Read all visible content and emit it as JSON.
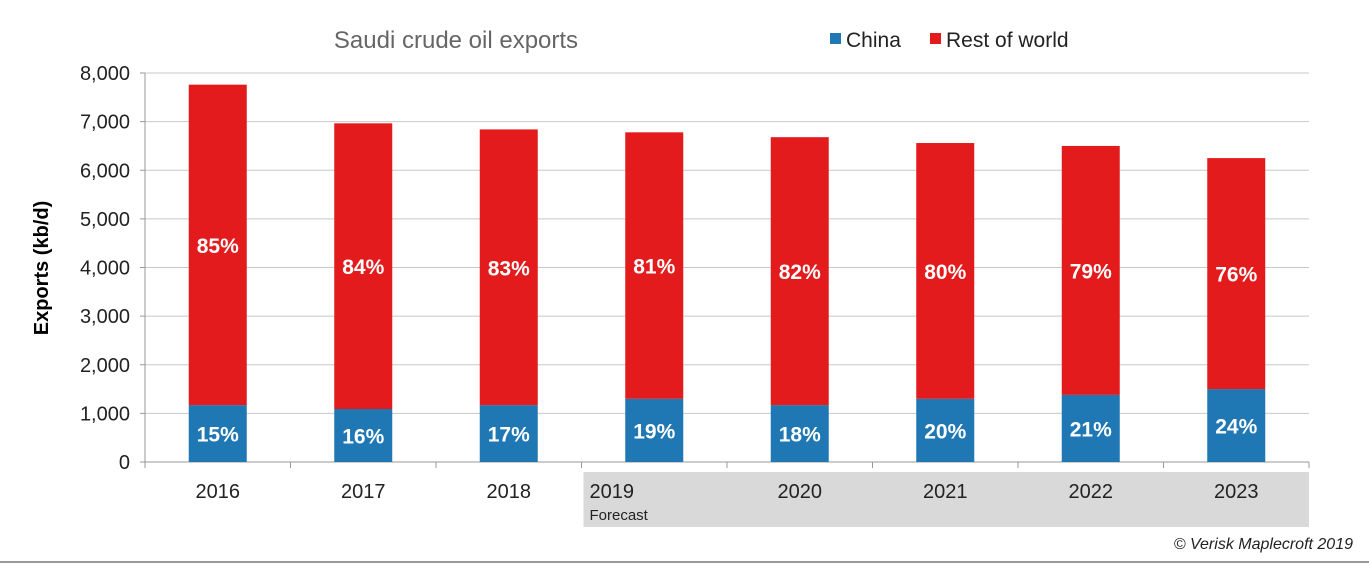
{
  "chart_data": {
    "type": "bar",
    "stacked": true,
    "title": "Saudi crude oil  exports",
    "ylabel": "Exports (kb/d)",
    "xlabel": "",
    "ylim": [
      0,
      8000
    ],
    "yticks": [
      "0",
      "1,000",
      "2,000",
      "3,000",
      "4,000",
      "5,000",
      "6,000",
      "7,000",
      "8,000"
    ],
    "grid": true,
    "legend_position": "top-right",
    "categories": [
      "2016",
      "2017",
      "2018",
      "2019",
      "2020",
      "2021",
      "2022",
      "2023"
    ],
    "forecast_label": "Forecast",
    "forecast_from": "2019",
    "series": [
      {
        "name": "China",
        "color": "#1f77b4",
        "values": [
          1170,
          1090,
          1170,
          1300,
          1170,
          1300,
          1380,
          1500
        ],
        "labels": [
          "15%",
          "16%",
          "17%",
          "19%",
          "18%",
          "20%",
          "21%",
          "24%"
        ]
      },
      {
        "name": "Rest of world",
        "color": "#e31b1d",
        "values": [
          6590,
          5875,
          5670,
          5480,
          5510,
          5260,
          5120,
          4750
        ],
        "labels": [
          "85%",
          "84%",
          "83%",
          "81%",
          "82%",
          "80%",
          "79%",
          "76%"
        ]
      }
    ]
  },
  "copyright": "© Verisk Maplecroft 2019"
}
